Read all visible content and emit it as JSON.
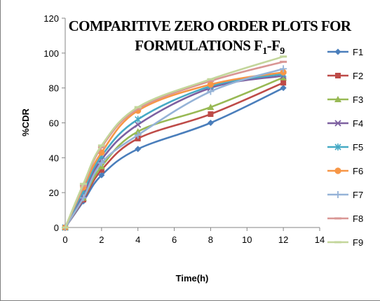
{
  "chart_data": {
    "type": "line",
    "title_line1": "COMPARITIVE ZERO ORDER PLOTS FOR",
    "title_line2_main": "FORMULATIONS F",
    "title_line2_sub1": "1",
    "title_line2_sep": "-F",
    "title_line2_sub2": "9",
    "xlabel": "Time(h)",
    "ylabel": "%CDR",
    "xlim": [
      0,
      14
    ],
    "ylim": [
      0,
      120
    ],
    "xticks": [
      0,
      2,
      4,
      6,
      8,
      10,
      12,
      14
    ],
    "yticks": [
      0,
      20,
      40,
      60,
      80,
      100,
      120
    ],
    "grid": false,
    "legend_position": "right",
    "x": [
      0,
      1,
      2,
      4,
      8,
      12
    ],
    "series": [
      {
        "name": "F1",
        "values": [
          0,
          15,
          30,
          45,
          60,
          80
        ],
        "color": "#4a7ebb",
        "marker": "diamond"
      },
      {
        "name": "F2",
        "values": [
          0,
          16,
          33,
          51,
          65,
          83
        ],
        "color": "#be4b48",
        "marker": "square"
      },
      {
        "name": "F3",
        "values": [
          0,
          17,
          35,
          55,
          69,
          86
        ],
        "color": "#98b954",
        "marker": "triangle"
      },
      {
        "name": "F4",
        "values": [
          0,
          19,
          39,
          59,
          80,
          87
        ],
        "color": "#7d60a0",
        "marker": "x"
      },
      {
        "name": "F5",
        "values": [
          0,
          21,
          41,
          62,
          81,
          88
        ],
        "color": "#46aac5",
        "marker": "star"
      },
      {
        "name": "F6",
        "values": [
          0,
          23,
          43,
          67,
          82,
          89
        ],
        "color": "#f79646",
        "marker": "circle"
      },
      {
        "name": "F7",
        "values": [
          0,
          17,
          37,
          53,
          78,
          91
        ],
        "color": "#95b3d7",
        "marker": "plus"
      },
      {
        "name": "F8",
        "values": [
          0,
          24,
          46,
          68,
          84,
          95
        ],
        "color": "#d99694",
        "marker": "dash"
      },
      {
        "name": "F9",
        "values": [
          0,
          25,
          47,
          69,
          85,
          98
        ],
        "color": "#c3d69b",
        "marker": "dash"
      }
    ]
  }
}
